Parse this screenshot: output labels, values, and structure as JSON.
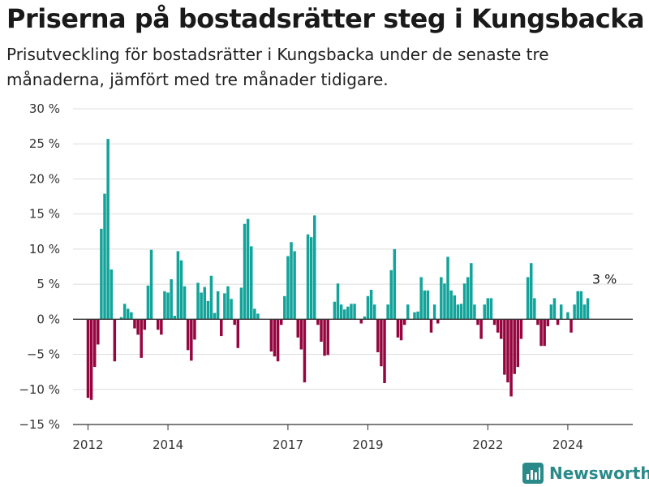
{
  "title": "Priserna på bostadsrätter steg i Kungsbacka",
  "subtitle": "Prisutveckling för bostadsrätter i Kungsbacka under de senaste tre månaderna, jämfört med tre månader tidigare.",
  "brand": {
    "name": "Newsworthy",
    "icon": "newsworthy-logo-icon"
  },
  "colors": {
    "positive": "#12a49a",
    "negative": "#96053f",
    "grid": "#dddddd",
    "baseline": "#333333"
  },
  "chart_data": {
    "type": "bar",
    "title": "",
    "xlabel": "",
    "ylabel": "",
    "unit": "%",
    "ylim": [
      -15,
      30
    ],
    "yticks": [
      30,
      25,
      20,
      15,
      10,
      5,
      0,
      -5,
      -10,
      -15
    ],
    "ytick_labels": [
      "30 %",
      "25 %",
      "20 %",
      "15 %",
      "10 %",
      "5 %",
      "0 %",
      "−5 %",
      "−10 %",
      "−15 %"
    ],
    "xlim": [
      "2011-09",
      "2025-09"
    ],
    "xticks": [
      "2012-01",
      "2014-01",
      "2017-01",
      "2019-01",
      "2022-01",
      "2024-01"
    ],
    "xtick_labels": [
      "2012",
      "2014",
      "2017",
      "2019",
      "2022",
      "2024"
    ],
    "grid": true,
    "annotation": {
      "text": "3 %",
      "x": "2024-12"
    },
    "series": [
      {
        "values": [
          [
            "2012-01",
            -11.2
          ],
          [
            "2012-02",
            -11.5
          ],
          [
            "2012-03",
            -6.8
          ],
          [
            "2012-04",
            -3.6
          ],
          [
            "2012-05",
            12.9
          ],
          [
            "2012-06",
            17.9
          ],
          [
            "2012-07",
            25.7
          ],
          [
            "2012-08",
            7.1
          ],
          [
            "2012-09",
            -6.0
          ],
          [
            "2012-11",
            0.3
          ],
          [
            "2012-12",
            2.2
          ],
          [
            "2013-01",
            1.5
          ],
          [
            "2013-02",
            1.0
          ],
          [
            "2013-03",
            -1.3
          ],
          [
            "2013-04",
            -2.2
          ],
          [
            "2013-05",
            -5.5
          ],
          [
            "2013-06",
            -1.5
          ],
          [
            "2013-07",
            4.8
          ],
          [
            "2013-08",
            9.9
          ],
          [
            "2013-10",
            -1.5
          ],
          [
            "2013-11",
            -2.2
          ],
          [
            "2013-12",
            4.0
          ],
          [
            "2014-01",
            3.8
          ],
          [
            "2014-02",
            5.7
          ],
          [
            "2014-03",
            0.5
          ],
          [
            "2014-04",
            9.7
          ],
          [
            "2014-05",
            8.4
          ],
          [
            "2014-06",
            4.7
          ],
          [
            "2014-07",
            -4.4
          ],
          [
            "2014-08",
            -5.9
          ],
          [
            "2014-09",
            -2.9
          ],
          [
            "2014-10",
            5.2
          ],
          [
            "2014-11",
            3.8
          ],
          [
            "2014-12",
            4.6
          ],
          [
            "2015-01",
            2.6
          ],
          [
            "2015-02",
            6.2
          ],
          [
            "2015-03",
            0.9
          ],
          [
            "2015-04",
            4.0
          ],
          [
            "2015-05",
            -2.4
          ],
          [
            "2015-06",
            3.7
          ],
          [
            "2015-07",
            4.7
          ],
          [
            "2015-08",
            2.9
          ],
          [
            "2015-09",
            -0.8
          ],
          [
            "2015-10",
            -4.1
          ],
          [
            "2015-11",
            4.5
          ],
          [
            "2015-12",
            13.6
          ],
          [
            "2016-01",
            14.3
          ],
          [
            "2016-02",
            10.4
          ],
          [
            "2016-03",
            1.5
          ],
          [
            "2016-04",
            0.8
          ],
          [
            "2016-08",
            -4.6
          ],
          [
            "2016-09",
            -5.3
          ],
          [
            "2016-10",
            -6.0
          ],
          [
            "2016-11",
            -0.8
          ],
          [
            "2016-12",
            3.3
          ],
          [
            "2017-01",
            9.0
          ],
          [
            "2017-02",
            11.0
          ],
          [
            "2017-03",
            9.7
          ],
          [
            "2017-04",
            -2.6
          ],
          [
            "2017-05",
            -4.3
          ],
          [
            "2017-06",
            -9.0
          ],
          [
            "2017-07",
            12.1
          ],
          [
            "2017-08",
            11.7
          ],
          [
            "2017-09",
            14.8
          ],
          [
            "2017-10",
            -0.8
          ],
          [
            "2017-11",
            -3.2
          ],
          [
            "2017-12",
            -5.2
          ],
          [
            "2018-01",
            -5.1
          ],
          [
            "2018-03",
            2.5
          ],
          [
            "2018-04",
            5.1
          ],
          [
            "2018-05",
            2.1
          ],
          [
            "2018-06",
            1.4
          ],
          [
            "2018-07",
            1.8
          ],
          [
            "2018-08",
            2.2
          ],
          [
            "2018-09",
            2.2
          ],
          [
            "2018-11",
            -0.6
          ],
          [
            "2018-12",
            0.4
          ],
          [
            "2019-01",
            3.3
          ],
          [
            "2019-02",
            4.2
          ],
          [
            "2019-03",
            2.1
          ],
          [
            "2019-04",
            -4.7
          ],
          [
            "2019-05",
            -6.7
          ],
          [
            "2019-06",
            -9.1
          ],
          [
            "2019-07",
            2.1
          ],
          [
            "2019-08",
            7.0
          ],
          [
            "2019-09",
            10.0
          ],
          [
            "2019-10",
            -2.6
          ],
          [
            "2019-11",
            -3.0
          ],
          [
            "2019-12",
            -0.8
          ],
          [
            "2020-01",
            2.1
          ],
          [
            "2020-03",
            1.0
          ],
          [
            "2020-04",
            1.1
          ],
          [
            "2020-05",
            6.0
          ],
          [
            "2020-06",
            4.1
          ],
          [
            "2020-07",
            4.1
          ],
          [
            "2020-08",
            -1.9
          ],
          [
            "2020-09",
            2.1
          ],
          [
            "2020-10",
            -0.6
          ],
          [
            "2020-11",
            6.0
          ],
          [
            "2020-12",
            5.1
          ],
          [
            "2021-01",
            8.9
          ],
          [
            "2021-02",
            4.1
          ],
          [
            "2021-03",
            3.4
          ],
          [
            "2021-04",
            2.1
          ],
          [
            "2021-05",
            2.2
          ],
          [
            "2021-06",
            5.1
          ],
          [
            "2021-07",
            6.0
          ],
          [
            "2021-08",
            8.0
          ],
          [
            "2021-09",
            2.1
          ],
          [
            "2021-10",
            -0.8
          ],
          [
            "2021-11",
            -2.8
          ],
          [
            "2021-12",
            2.1
          ],
          [
            "2022-01",
            3.0
          ],
          [
            "2022-02",
            3.0
          ],
          [
            "2022-03",
            -0.8
          ],
          [
            "2022-04",
            -1.9
          ],
          [
            "2022-05",
            -2.8
          ],
          [
            "2022-06",
            -7.9
          ],
          [
            "2022-07",
            -9.0
          ],
          [
            "2022-08",
            -11.0
          ],
          [
            "2022-09",
            -7.8
          ],
          [
            "2022-10",
            -6.8
          ],
          [
            "2022-11",
            -2.8
          ],
          [
            "2023-01",
            6.0
          ],
          [
            "2023-02",
            8.0
          ],
          [
            "2023-03",
            3.0
          ],
          [
            "2023-04",
            -0.8
          ],
          [
            "2023-05",
            -3.8
          ],
          [
            "2023-06",
            -3.8
          ],
          [
            "2023-07",
            -1.0
          ],
          [
            "2023-08",
            2.1
          ],
          [
            "2023-09",
            3.0
          ],
          [
            "2023-10",
            -0.8
          ],
          [
            "2023-11",
            2.1
          ],
          [
            "2024-01",
            1.0
          ],
          [
            "2024-02",
            -1.9
          ],
          [
            "2024-03",
            2.1
          ],
          [
            "2024-04",
            4.0
          ],
          [
            "2024-05",
            4.0
          ],
          [
            "2024-06",
            2.1
          ],
          [
            "2024-07",
            3.0
          ]
        ]
      }
    ]
  }
}
